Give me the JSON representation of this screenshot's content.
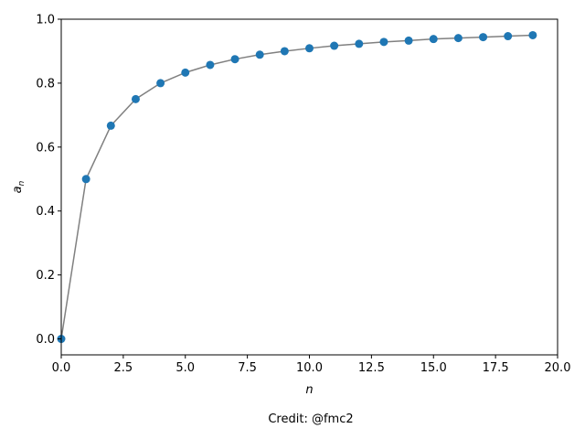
{
  "chart_data": {
    "type": "line",
    "title": "",
    "xlabel": "n",
    "ylabel_base": "a",
    "ylabel_sub": "n",
    "xlim": [
      0,
      20
    ],
    "ylim": [
      -0.05,
      1.0
    ],
    "xticks": [
      0,
      2.5,
      5,
      7.5,
      10,
      12.5,
      15,
      17.5,
      20
    ],
    "xtick_labels": [
      "0.0",
      "2.5",
      "5.0",
      "7.5",
      "10.0",
      "12.5",
      "15.0",
      "17.5",
      "20.0"
    ],
    "yticks": [
      0,
      0.2,
      0.4,
      0.6,
      0.8,
      1.0
    ],
    "ytick_labels": [
      "0.0",
      "0.2",
      "0.4",
      "0.6",
      "0.8",
      "1.0"
    ],
    "grid": false,
    "legend": "none",
    "series": [
      {
        "line_color": "#808080",
        "marker_color": "#1f77b4",
        "x": [
          0,
          1,
          2,
          3,
          4,
          5,
          6,
          7,
          8,
          9,
          10,
          11,
          12,
          13,
          14,
          15,
          16,
          17,
          18,
          19
        ],
        "y": [
          0,
          0.5,
          0.667,
          0.75,
          0.8,
          0.833,
          0.857,
          0.875,
          0.889,
          0.9,
          0.909,
          0.917,
          0.923,
          0.929,
          0.933,
          0.938,
          0.941,
          0.944,
          0.947,
          0.95
        ]
      }
    ]
  },
  "footer": {
    "credit": "Credit: @fmc2"
  }
}
